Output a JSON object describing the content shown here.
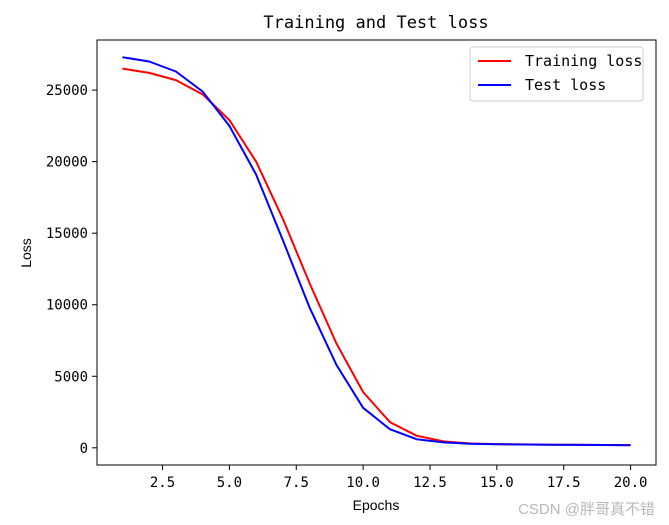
{
  "chart_data": {
    "type": "line",
    "title": "Training and Test loss",
    "xlabel": "Epochs",
    "ylabel": "Loss",
    "xlim": [
      0.05,
      20.95
    ],
    "ylim": [
      -1200,
      28500
    ],
    "xticks": [
      2.5,
      5.0,
      7.5,
      10.0,
      12.5,
      15.0,
      17.5,
      20.0
    ],
    "xtick_labels": [
      "2.5",
      "5.0",
      "7.5",
      "10.0",
      "12.5",
      "15.0",
      "17.5",
      "20.0"
    ],
    "yticks": [
      0,
      5000,
      10000,
      15000,
      20000,
      25000
    ],
    "ytick_labels": [
      "0",
      "5000",
      "10000",
      "15000",
      "20000",
      "25000"
    ],
    "grid": false,
    "legend_position": "top-right",
    "x": [
      1,
      2,
      3,
      4,
      5,
      6,
      7,
      8,
      9,
      10,
      11,
      12,
      13,
      14,
      15,
      16,
      17,
      18,
      19,
      20
    ],
    "series": [
      {
        "name": "Training loss",
        "color": "#ff0000",
        "values": [
          26500,
          26200,
          25700,
          24700,
          22900,
          20000,
          16000,
          11500,
          7300,
          3900,
          1800,
          850,
          450,
          300,
          260,
          240,
          220,
          210,
          200,
          190
        ]
      },
      {
        "name": "Test loss",
        "color": "#0000ff",
        "values": [
          27300,
          27000,
          26300,
          24900,
          22500,
          19100,
          14500,
          9800,
          5800,
          2800,
          1300,
          600,
          380,
          280,
          250,
          230,
          215,
          205,
          195,
          185
        ]
      }
    ]
  },
  "watermark": "CSDN @胖哥真不错"
}
